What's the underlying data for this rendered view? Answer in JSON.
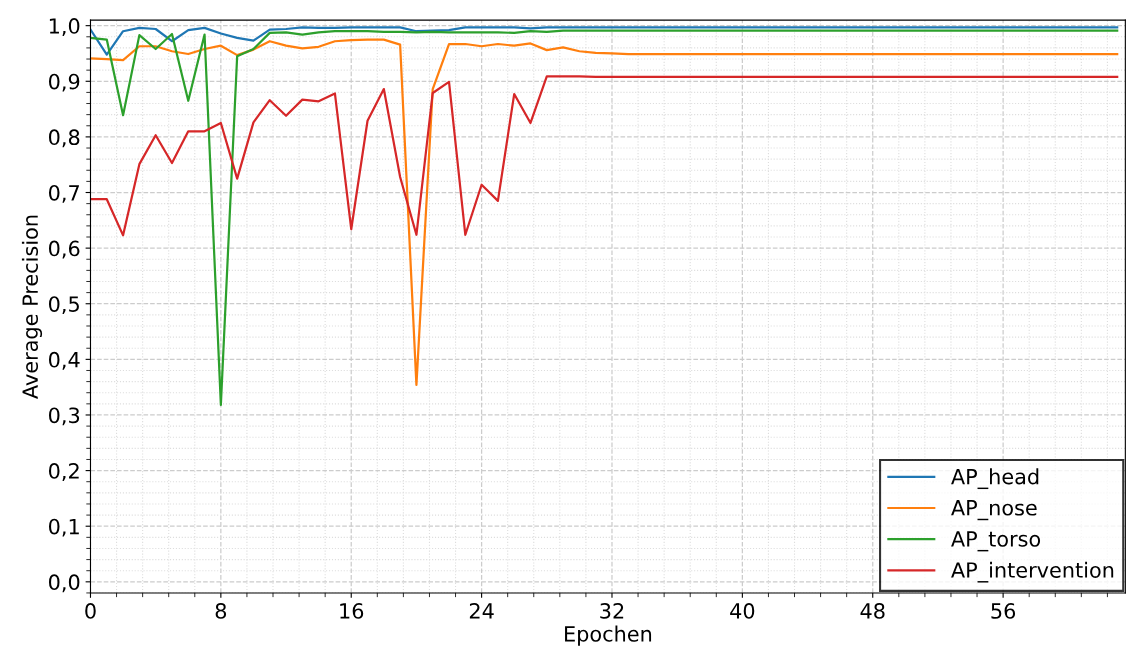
{
  "chart_data": {
    "type": "line",
    "xlabel": "Epochen",
    "ylabel": "Average Precision",
    "xlim": [
      0,
      63.5
    ],
    "ylim": [
      -0.02,
      1.01
    ],
    "xticks": [
      0,
      8,
      16,
      24,
      32,
      40,
      48,
      56
    ],
    "yticks": [
      {
        "value": 0,
        "label": "0,0"
      },
      {
        "value": 0.1,
        "label": "0,1"
      },
      {
        "value": 0.2,
        "label": "0,2"
      },
      {
        "value": 0.3,
        "label": "0,3"
      },
      {
        "value": 0.4,
        "label": "0,4"
      },
      {
        "value": 0.5,
        "label": "0,5"
      },
      {
        "value": 0.6,
        "label": "0,6"
      },
      {
        "value": 0.7,
        "label": "0,7"
      },
      {
        "value": 0.8,
        "label": "0,8"
      },
      {
        "value": 0.9,
        "label": "0,9"
      },
      {
        "value": 1.0,
        "label": "1,0"
      }
    ],
    "grid": true,
    "legend": "bottom right",
    "marker": "none",
    "line_style": "solid",
    "x": [
      0,
      1,
      2,
      3,
      4,
      5,
      6,
      7,
      8,
      9,
      10,
      11,
      12,
      13,
      14,
      15,
      16,
      17,
      18,
      19,
      20,
      21,
      22,
      23,
      24,
      25,
      26,
      27,
      28,
      29,
      30,
      31,
      32,
      33,
      34,
      35,
      36,
      37,
      38,
      39,
      40,
      41,
      42,
      43,
      44,
      45,
      46,
      47,
      48,
      49,
      50,
      51,
      52,
      53,
      54,
      55,
      56,
      57,
      58,
      59,
      60,
      61,
      62,
      63
    ],
    "series": [
      {
        "name": "AP_head",
        "color": "#1f77b4",
        "values": [
          0.993,
          0.948,
          0.99,
          0.996,
          0.994,
          0.972,
          0.992,
          0.996,
          0.986,
          0.978,
          0.973,
          0.993,
          0.994,
          0.997,
          0.996,
          0.996,
          0.997,
          0.997,
          0.997,
          0.997,
          0.99,
          0.991,
          0.992,
          0.997,
          0.997,
          0.997,
          0.997,
          0.995,
          0.997,
          0.997,
          0.997,
          0.997,
          0.997,
          0.997,
          0.997,
          0.997,
          0.997,
          0.997,
          0.997,
          0.997,
          0.997,
          0.997,
          0.997,
          0.997,
          0.997,
          0.997,
          0.997,
          0.997,
          0.997,
          0.997,
          0.997,
          0.997,
          0.997,
          0.997,
          0.997,
          0.997,
          0.997,
          0.997,
          0.997,
          0.997,
          0.997,
          0.997,
          0.997,
          0.997
        ]
      },
      {
        "name": "AP_nose",
        "color": "#ff7f0e",
        "values": [
          0.941,
          0.94,
          0.938,
          0.963,
          0.963,
          0.954,
          0.949,
          0.958,
          0.964,
          0.947,
          0.957,
          0.972,
          0.964,
          0.959,
          0.962,
          0.972,
          0.974,
          0.975,
          0.975,
          0.966,
          0.354,
          0.886,
          0.967,
          0.967,
          0.963,
          0.967,
          0.964,
          0.968,
          0.956,
          0.961,
          0.954,
          0.951,
          0.95,
          0.949,
          0.949,
          0.949,
          0.949,
          0.949,
          0.949,
          0.949,
          0.949,
          0.949,
          0.949,
          0.949,
          0.949,
          0.949,
          0.949,
          0.949,
          0.949,
          0.949,
          0.949,
          0.949,
          0.949,
          0.949,
          0.949,
          0.949,
          0.949,
          0.949,
          0.949,
          0.949,
          0.949,
          0.949,
          0.949,
          0.949
        ]
      },
      {
        "name": "AP_torso",
        "color": "#2ca02c",
        "values": [
          0.978,
          0.975,
          0.839,
          0.983,
          0.958,
          0.985,
          0.865,
          0.984,
          0.318,
          0.945,
          0.958,
          0.987,
          0.988,
          0.984,
          0.988,
          0.99,
          0.99,
          0.99,
          0.989,
          0.989,
          0.988,
          0.989,
          0.988,
          0.988,
          0.988,
          0.988,
          0.987,
          0.99,
          0.989,
          0.991,
          0.991,
          0.991,
          0.991,
          0.991,
          0.991,
          0.991,
          0.991,
          0.991,
          0.991,
          0.991,
          0.991,
          0.991,
          0.991,
          0.991,
          0.991,
          0.991,
          0.991,
          0.991,
          0.991,
          0.991,
          0.991,
          0.991,
          0.991,
          0.991,
          0.991,
          0.991,
          0.991,
          0.991,
          0.991,
          0.991,
          0.991,
          0.991,
          0.991,
          0.991
        ]
      },
      {
        "name": "AP_intervention",
        "color": "#d62728",
        "values": [
          0.688,
          0.688,
          0.623,
          0.751,
          0.803,
          0.753,
          0.81,
          0.81,
          0.825,
          0.725,
          0.826,
          0.866,
          0.838,
          0.867,
          0.864,
          0.878,
          0.634,
          0.829,
          0.886,
          0.728,
          0.624,
          0.879,
          0.899,
          0.624,
          0.714,
          0.685,
          0.877,
          0.825,
          0.909,
          0.909,
          0.909,
          0.908,
          0.908,
          0.908,
          0.908,
          0.908,
          0.908,
          0.908,
          0.908,
          0.908,
          0.908,
          0.908,
          0.908,
          0.908,
          0.908,
          0.908,
          0.908,
          0.908,
          0.908,
          0.908,
          0.908,
          0.908,
          0.908,
          0.908,
          0.908,
          0.908,
          0.908,
          0.908,
          0.908,
          0.908,
          0.908,
          0.908,
          0.908,
          0.908
        ]
      }
    ]
  }
}
